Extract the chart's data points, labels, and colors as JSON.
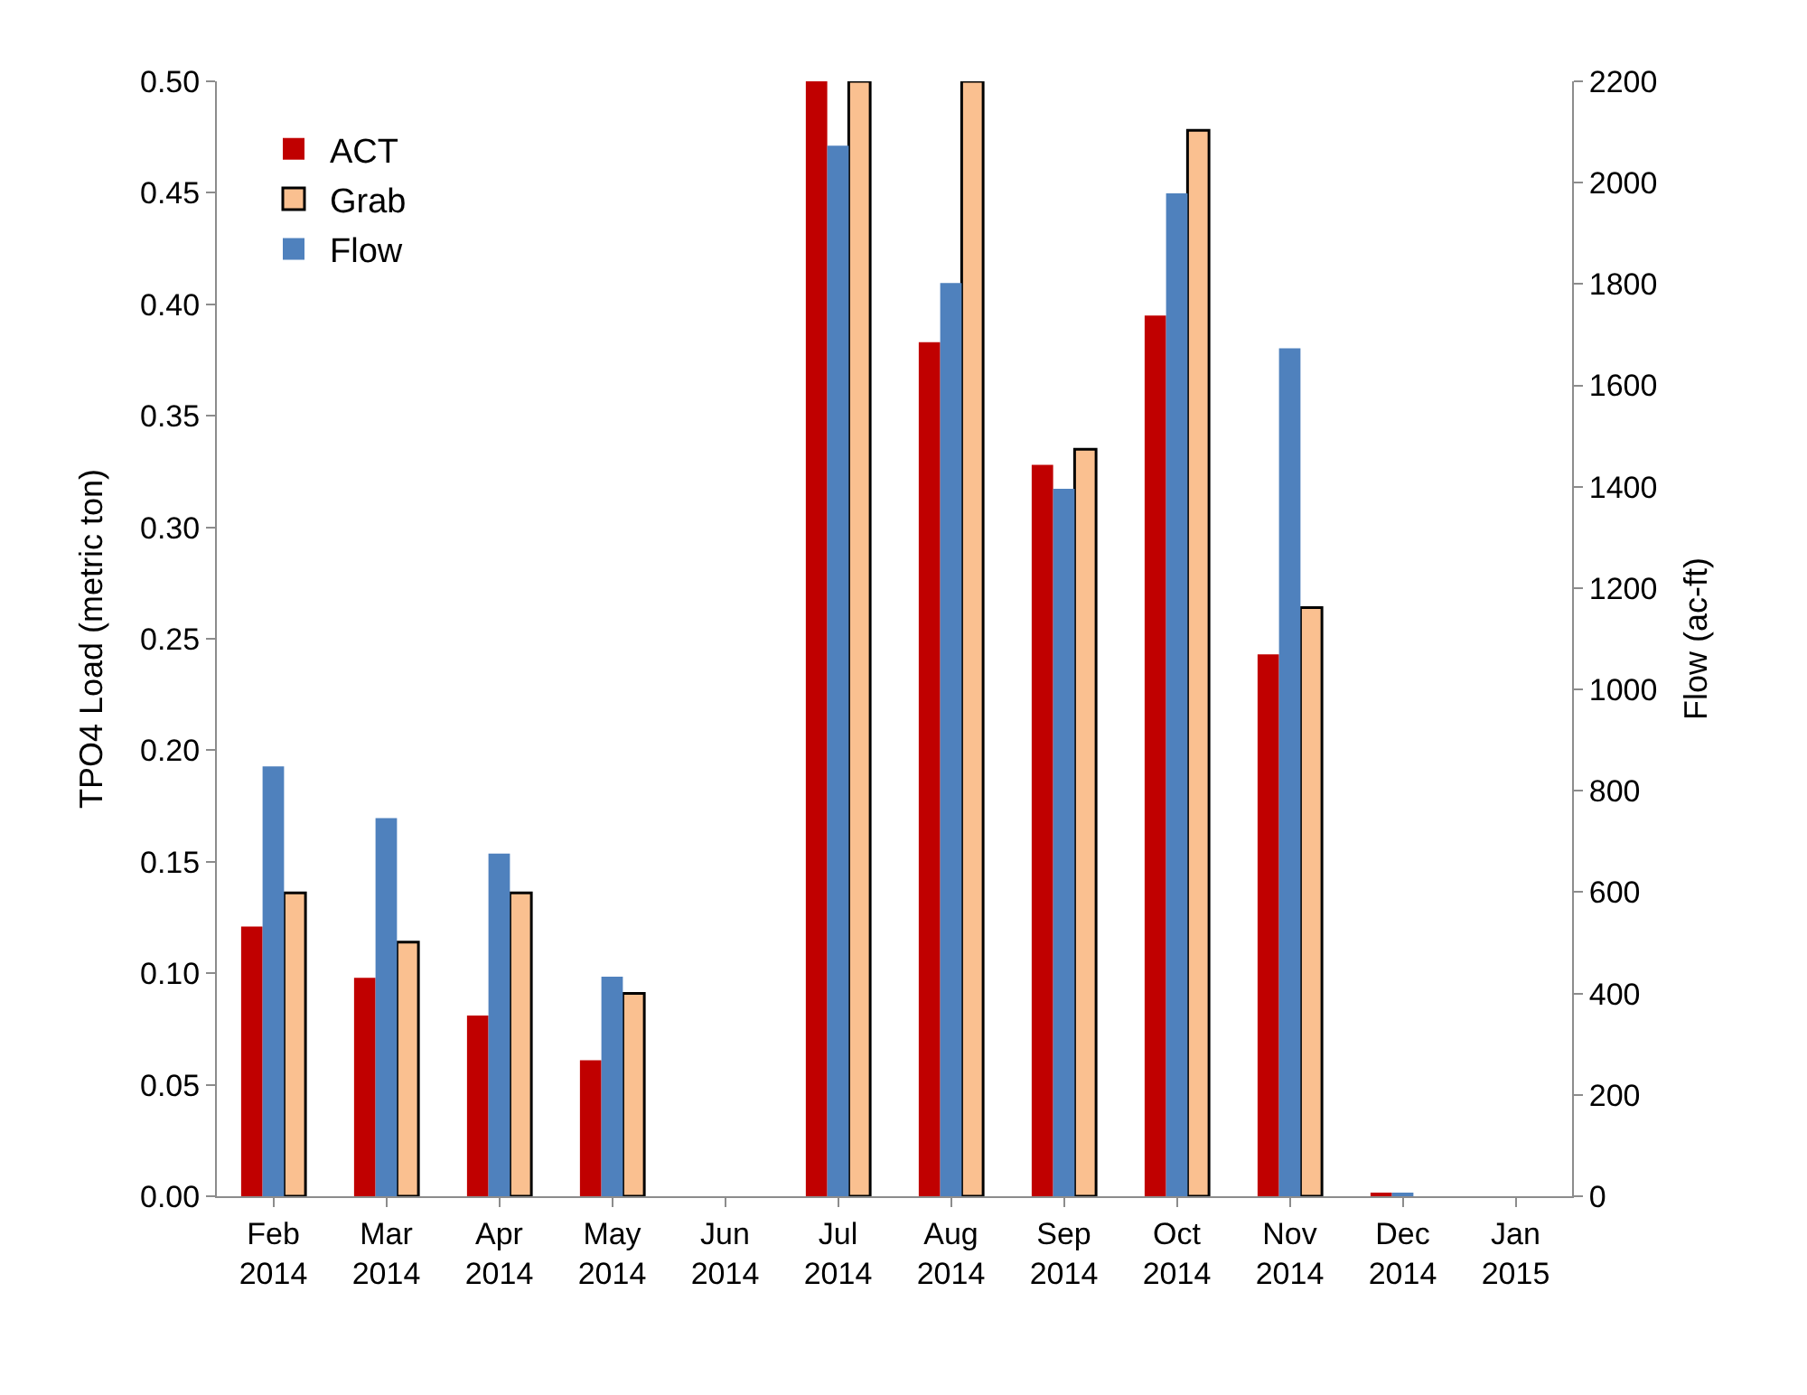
{
  "chart_data": {
    "type": "bar",
    "categories": [
      "Feb\n2014",
      "Mar\n2014",
      "Apr\n2014",
      "May\n2014",
      "Jun\n2014",
      "Jul\n2014",
      "Aug\n2014",
      "Sep\n2014",
      "Oct\n2014",
      "Nov\n2014",
      "Dec\n2014",
      "Jan\n2015"
    ],
    "ylabel": "TPO4 Load (metric ton)",
    "y2label": "Flow (ac-ft)",
    "series": [
      {
        "name": "ACT",
        "color": "#c00000",
        "values": [
          0.121,
          0.098,
          0.081,
          0.061,
          0,
          0.5,
          0.383,
          0.328,
          0.395,
          0.243,
          0.001,
          0
        ]
      },
      {
        "name": "Grab",
        "color": "#fac090",
        "values": [
          0.136,
          0.114,
          0.136,
          0.091,
          0,
          0.5,
          0.5,
          0.335,
          0.478,
          0.264,
          null,
          0
        ]
      },
      {
        "name": "Flow",
        "color": "#4f81bd",
        "axis": "y2",
        "values": [
          848,
          746,
          676,
          433,
          0,
          2073,
          1802,
          1396,
          1979,
          1673,
          5,
          0
        ]
      }
    ],
    "ylim": [
      0,
      0.5
    ],
    "yticks": [
      {
        "value": 0,
        "label": "0.00"
      },
      {
        "value": 0.05,
        "label": "0.05"
      },
      {
        "value": 0.1,
        "label": "0.10"
      },
      {
        "value": 0.15,
        "label": "0.15"
      },
      {
        "value": 0.2,
        "label": "0.20"
      },
      {
        "value": 0.25,
        "label": "0.25"
      },
      {
        "value": 0.3,
        "label": "0.30"
      },
      {
        "value": 0.35,
        "label": "0.35"
      },
      {
        "value": 0.4,
        "label": "0.40"
      },
      {
        "value": 0.45,
        "label": "0.45"
      },
      {
        "value": 0.5,
        "label": "0.50"
      }
    ],
    "y2lim": [
      0,
      2200
    ],
    "y2ticks": [
      0,
      200,
      400,
      600,
      800,
      1000,
      1200,
      1400,
      1600,
      1800,
      2000,
      2200
    ],
    "legend": "top left"
  }
}
